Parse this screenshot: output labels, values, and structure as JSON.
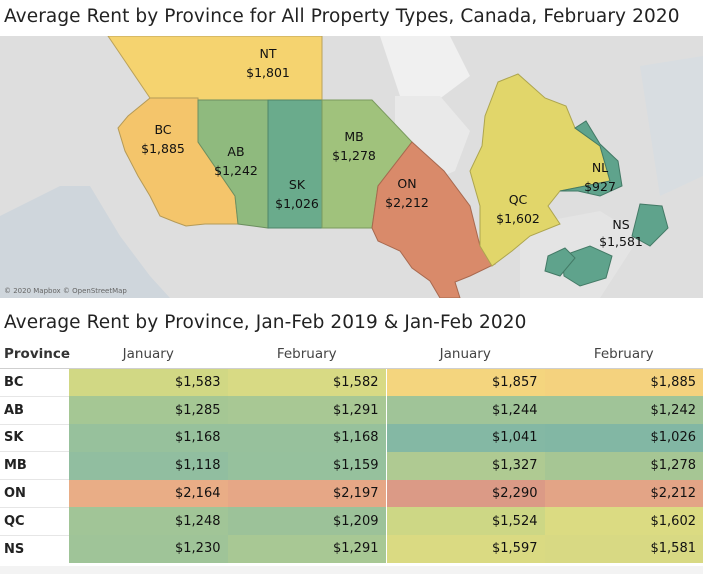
{
  "map_title": "Average Rent by Province for All Property Types, Canada, February 2020",
  "table_title": "Average Rent by Province, Jan-Feb 2019 & Jan-Feb 2020",
  "attribution": "© 2020 Mapbox © OpenStreetMap",
  "chart_data": [
    {
      "type": "choropleth-map",
      "title": "Average Rent by Province for All Property Types, Canada, February 2020",
      "regions": [
        {
          "code": "NT",
          "value": "$1,801",
          "color": "#f5d36f"
        },
        {
          "code": "BC",
          "value": "$1,885",
          "color": "#f4c56b"
        },
        {
          "code": "AB",
          "value": "$1,242",
          "color": "#8fba7e"
        },
        {
          "code": "SK",
          "value": "$1,026",
          "color": "#6aab8c"
        },
        {
          "code": "MB",
          "value": "$1,278",
          "color": "#a0c27c"
        },
        {
          "code": "ON",
          "value": "$2,212",
          "color": "#d98a6a"
        },
        {
          "code": "QC",
          "value": "$1,602",
          "color": "#e1d66a"
        },
        {
          "code": "NL",
          "value": "$927",
          "color": "#5fa38c"
        },
        {
          "code": "NS",
          "value": "$1,581",
          "color": "#5fa38c"
        }
      ]
    },
    {
      "type": "table",
      "title": "Average Rent by Province, Jan-Feb 2019 & Jan-Feb 2020",
      "columns": [
        "Province",
        "January",
        "February",
        "January",
        "February"
      ],
      "rows": [
        {
          "province": "BC",
          "values": [
            "$1,583",
            "$1,582",
            "$1,857",
            "$1,885"
          ],
          "colors": [
            "#d1d884",
            "#d8da84",
            "#f4d57e",
            "#f4d27e"
          ]
        },
        {
          "province": "AB",
          "values": [
            "$1,285",
            "$1,291",
            "$1,244",
            "$1,242"
          ],
          "colors": [
            "#a5c794",
            "#a8c894",
            "#a0c498",
            "#a0c498"
          ]
        },
        {
          "province": "SK",
          "values": [
            "$1,168",
            "$1,168",
            "$1,041",
            "$1,026"
          ],
          "colors": [
            "#97c19c",
            "#97c19c",
            "#84b8a4",
            "#82b7a4"
          ]
        },
        {
          "province": "MB",
          "values": [
            "$1,118",
            "$1,159",
            "$1,327",
            "$1,278"
          ],
          "colors": [
            "#91bea0",
            "#96c19d",
            "#afca92",
            "#a6c694"
          ]
        },
        {
          "province": "ON",
          "values": [
            "$2,164",
            "$2,197",
            "$2,290",
            "$2,212"
          ],
          "colors": [
            "#e9ad86",
            "#e6a786",
            "#db9a86",
            "#e3a486"
          ]
        },
        {
          "province": "QC",
          "values": [
            "$1,248",
            "$1,209",
            "$1,524",
            "$1,602"
          ],
          "colors": [
            "#a1c597",
            "#9cc299",
            "#cdd785",
            "#dbdb82"
          ]
        },
        {
          "province": "NS",
          "values": [
            "$1,230",
            "$1,291",
            "$1,597",
            "$1,581"
          ],
          "colors": [
            "#9fc498",
            "#a8c894",
            "#dada82",
            "#d8d983"
          ]
        }
      ]
    }
  ]
}
